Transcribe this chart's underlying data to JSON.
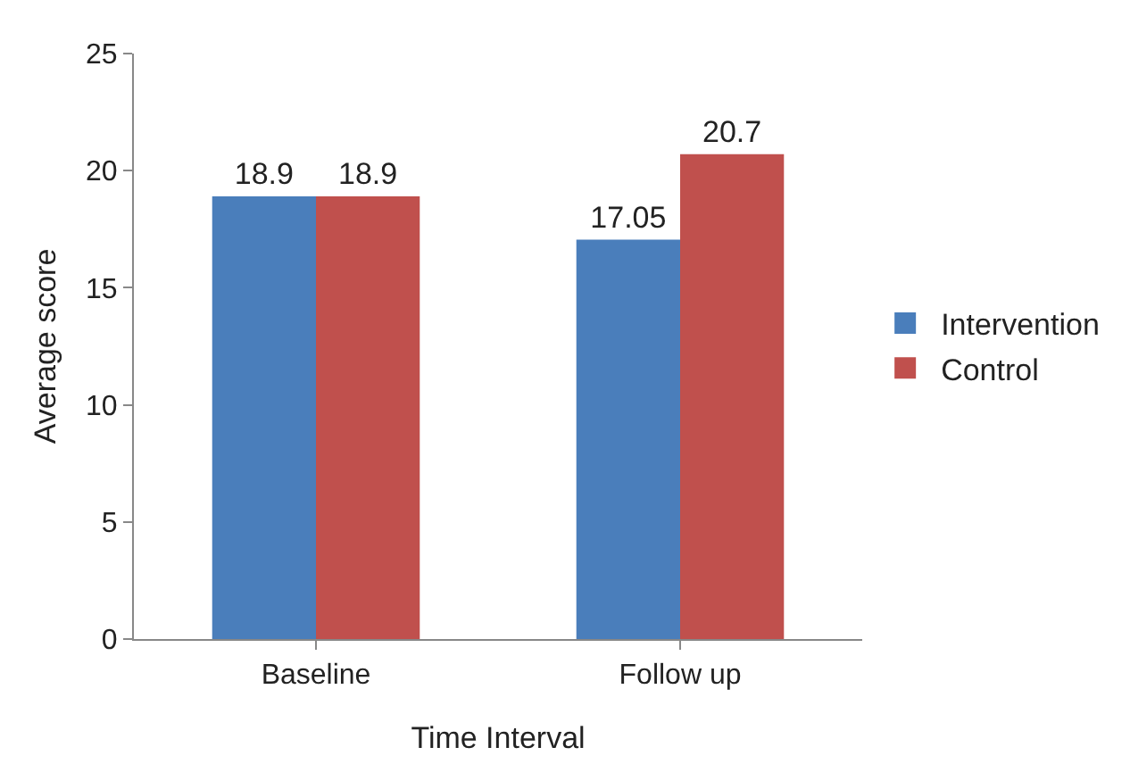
{
  "chart_data": {
    "type": "bar",
    "xlabel": "Time Interval",
    "ylabel": "Average score",
    "categories": [
      "Baseline",
      "Follow up"
    ],
    "series": [
      {
        "name": "Intervention",
        "color": "#4a7ebb",
        "values": [
          18.9,
          17.05
        ]
      },
      {
        "name": "Control",
        "color": "#c0504d",
        "values": [
          18.9,
          20.7
        ]
      }
    ],
    "ylim": [
      0,
      25
    ],
    "yticks": [
      0,
      5,
      10,
      15,
      20,
      25
    ],
    "grid": false,
    "legend": "right",
    "data_labels": true
  }
}
